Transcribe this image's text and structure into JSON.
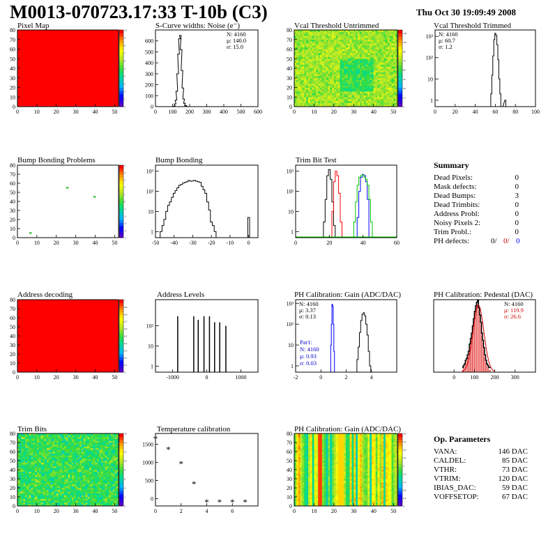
{
  "title": "M0013-070723.17:33 T-10b (C3)",
  "timestamp": "Thu Oct 30 19:09:49 2008",
  "chart_data": [
    {
      "id": "pixel-map",
      "type": "heatmap",
      "title": "Pixel Map",
      "xlim": [
        0,
        52
      ],
      "ylim": [
        0,
        80
      ],
      "xticks": [
        0,
        10,
        20,
        30,
        40,
        50
      ],
      "yticks": [
        0,
        10,
        20,
        30,
        40,
        50,
        60,
        70,
        80
      ],
      "fill": "uniform-red",
      "zlim": [
        0,
        10
      ],
      "zticks": [
        0,
        1,
        2,
        3,
        4,
        5,
        6,
        7,
        8,
        9,
        10
      ]
    },
    {
      "id": "scurve",
      "type": "line",
      "title": "S-Curve widths: Noise (e⁻)",
      "xlim": [
        0,
        600
      ],
      "ylim": [
        0,
        700
      ],
      "xticks": [
        0,
        100,
        200,
        300,
        400,
        500,
        600
      ],
      "yticks": [
        0,
        100,
        200,
        300,
        400,
        500,
        600
      ],
      "stats": [
        "N: 4160",
        "μ: 140.0",
        "σ: 15.0"
      ],
      "series": [
        {
          "color": "#000000",
          "x": [
            100,
            110,
            115,
            120,
            125,
            130,
            135,
            140,
            145,
            150,
            155,
            160,
            165,
            170,
            175,
            180,
            190
          ],
          "values": [
            0,
            5,
            25,
            60,
            140,
            300,
            480,
            620,
            650,
            520,
            330,
            170,
            70,
            30,
            10,
            3,
            0
          ]
        }
      ]
    },
    {
      "id": "vcal-untrimmed",
      "type": "heatmap",
      "title": "Vcal Threshold Untrimmed",
      "xlim": [
        0,
        52
      ],
      "ylim": [
        0,
        80
      ],
      "xticks": [
        0,
        10,
        20,
        30,
        40,
        50
      ],
      "yticks": [
        0,
        10,
        20,
        30,
        40,
        50,
        60,
        70,
        80
      ],
      "fill": "noise",
      "noise_mean": 0.6,
      "noise_spread": 0.15,
      "zlim": [
        0,
        125
      ],
      "zticks": [
        0,
        5,
        10,
        15,
        20,
        25,
        30,
        35,
        40,
        45,
        50,
        55,
        60,
        65,
        70,
        75,
        80,
        85,
        90,
        95,
        100,
        105,
        110,
        115,
        120,
        125
      ]
    },
    {
      "id": "vcal-trimmed",
      "type": "line",
      "log": true,
      "title": "Vcal Threshold Trimmed",
      "xlim": [
        0,
        100
      ],
      "ylim": [
        0.5,
        2000
      ],
      "xticks": [
        0,
        20,
        40,
        60,
        80,
        100
      ],
      "ytickvals": [
        1,
        10,
        100,
        1000
      ],
      "yticklabels": [
        "1",
        "10",
        "10²",
        "10³"
      ],
      "stats": [
        "N: 4160",
        "μ: 60.7",
        "σ:  1.2"
      ],
      "series": [
        {
          "color": "#000000",
          "x": [
            55,
            56,
            57,
            58,
            59,
            60,
            61,
            62,
            63,
            64,
            65,
            66,
            67,
            70,
            71
          ],
          "values": [
            0.5,
            2,
            15,
            120,
            700,
            1400,
            1100,
            400,
            80,
            10,
            2,
            0.5,
            0.5,
            1,
            0.5
          ]
        }
      ]
    },
    {
      "id": "bump-problems",
      "type": "heatmap",
      "title": "Bump Bonding Problems",
      "xlim": [
        0,
        52
      ],
      "ylim": [
        0,
        80
      ],
      "xticks": [
        0,
        10,
        20,
        30,
        40,
        50
      ],
      "yticks": [
        0,
        10,
        20,
        30,
        40,
        50,
        60,
        70,
        80
      ],
      "fill": "points",
      "points": [
        [
          25,
          55
        ],
        [
          39,
          45
        ],
        [
          6,
          5
        ]
      ],
      "zlim": [
        -5,
        5
      ],
      "zticks": [
        -5,
        -4,
        -3,
        -2,
        -1,
        0,
        1,
        2,
        3,
        4,
        5
      ]
    },
    {
      "id": "bump-bonding",
      "type": "line",
      "log": true,
      "title": "Bump Bonding",
      "xlim": [
        -50,
        5
      ],
      "ylim": [
        0.5,
        2000
      ],
      "xticks": [
        -50,
        -40,
        -30,
        -20,
        -10,
        0
      ],
      "ytickvals": [
        1,
        10,
        100,
        1000
      ],
      "yticklabels": [
        "1",
        "10",
        "10²",
        "10³"
      ],
      "series": [
        {
          "color": "#000000",
          "x": [
            -48,
            -47,
            -46,
            -45,
            -44,
            -43,
            -42,
            -41,
            -40,
            -39,
            -38,
            -37,
            -36,
            -35,
            -34,
            -33,
            -32,
            -31,
            -30,
            -29,
            -28,
            -27,
            -26,
            -25,
            -24,
            -23,
            -22,
            -21,
            -20,
            -19,
            -18,
            -17,
            -16,
            -15,
            -14,
            -13,
            -12,
            -11,
            -10,
            -9,
            -8,
            -7,
            -6,
            -5,
            -4,
            -3,
            -2,
            -1,
            0,
            1
          ],
          "values": [
            0.5,
            1,
            2,
            4,
            10,
            20,
            30,
            50,
            80,
            110,
            150,
            200,
            220,
            260,
            280,
            300,
            350,
            320,
            330,
            350,
            320,
            300,
            280,
            180,
            120,
            80,
            30,
            12,
            3,
            2,
            1,
            0.5,
            0.5,
            0.5,
            0.5,
            0.5,
            0.5,
            0.5,
            0.5,
            0.5,
            0.5,
            0.5,
            0.5,
            0.5,
            0.5,
            0.5,
            0.5,
            0.5,
            5,
            0.5
          ]
        }
      ]
    },
    {
      "id": "trim-bit-test",
      "type": "line",
      "log": true,
      "title": "Trim Bit Test",
      "xlim": [
        0,
        60
      ],
      "ylim": [
        0.5,
        2000
      ],
      "xticks": [
        0,
        20,
        40,
        60
      ],
      "ytickvals": [
        1,
        10,
        100,
        1000
      ],
      "yticklabels": [
        "1",
        "10",
        "10²",
        "10³"
      ],
      "series": [
        {
          "color": "#000000",
          "x": [
            16,
            17,
            18,
            19,
            20,
            21,
            22,
            23,
            24
          ],
          "values": [
            0.5,
            3,
            40,
            600,
            1200,
            400,
            30,
            2,
            0.5
          ]
        },
        {
          "color": "#ff0000",
          "x": [
            21,
            22,
            23,
            24,
            25,
            26,
            27,
            28
          ],
          "values": [
            0.5,
            10,
            300,
            1000,
            600,
            80,
            3,
            0.5
          ]
        },
        {
          "color": "#0000ff",
          "x": [
            36,
            37,
            38,
            39,
            40,
            41,
            42,
            43,
            44
          ],
          "values": [
            0.5,
            5,
            100,
            500,
            700,
            600,
            300,
            40,
            0.5
          ]
        },
        {
          "color": "#00c800",
          "x": [
            34,
            35,
            36,
            37,
            38,
            39,
            40,
            41,
            42,
            43,
            44,
            45,
            46
          ],
          "values": [
            0.5,
            3,
            30,
            200,
            500,
            600,
            650,
            500,
            400,
            200,
            40,
            3,
            0.5
          ]
        }
      ]
    },
    {
      "id": "address-decoding",
      "type": "heatmap",
      "title": "Address decoding",
      "xlim": [
        0,
        52
      ],
      "ylim": [
        0,
        80
      ],
      "xticks": [
        0,
        10,
        20,
        30,
        40,
        50
      ],
      "yticks": [
        0,
        10,
        20,
        30,
        40,
        50,
        60,
        70,
        80
      ],
      "fill": "uniform-red",
      "zlim": [
        0,
        1
      ],
      "zticks": [
        0,
        0.1,
        0.2,
        0.3,
        0.4,
        0.5,
        0.6,
        0.7,
        0.8,
        0.9,
        1
      ]
    },
    {
      "id": "address-levels",
      "type": "bar",
      "log": true,
      "title": "Address Levels",
      "xlim": [
        -1500,
        1500
      ],
      "ylim": [
        0.5,
        2000
      ],
      "xticks": [
        -1000,
        0,
        1000
      ],
      "ytickvals": [
        1,
        10,
        100
      ],
      "yticklabels": [
        "1",
        "10",
        "10²"
      ],
      "spikes": [
        {
          "x": -850,
          "v": 300
        },
        {
          "x": -380,
          "v": 300
        },
        {
          "x": -250,
          "v": 200
        },
        {
          "x": -80,
          "v": 300
        },
        {
          "x": 80,
          "v": 300
        },
        {
          "x": 230,
          "v": 150
        },
        {
          "x": 380,
          "v": 150
        },
        {
          "x": 560,
          "v": 100
        }
      ]
    },
    {
      "id": "ph-gain",
      "type": "line",
      "log": true,
      "title": "PH Calibration: Gain (ADC/DAC)",
      "xlim": [
        -2,
        6
      ],
      "ylim": [
        0.5,
        1500
      ],
      "xticks": [
        -2,
        0,
        2,
        4
      ],
      "ytickvals": [
        1,
        10,
        100,
        1000
      ],
      "yticklabels": [
        "1",
        "10",
        "10²",
        "10³"
      ],
      "stats": [
        "N: 4160",
        "μ: 3.37",
        "σ: 0.13"
      ],
      "stats2": [
        "Par1:",
        "N: 4160",
        "μ: 0.93",
        "σ: 0.03"
      ],
      "series": [
        {
          "color": "#000000",
          "x": [
            2.8,
            2.9,
            3.0,
            3.1,
            3.2,
            3.3,
            3.4,
            3.5,
            3.6,
            3.7,
            3.8,
            3.9,
            4.0
          ],
          "values": [
            0.5,
            2,
            8,
            40,
            150,
            300,
            350,
            250,
            100,
            30,
            5,
            1,
            0.5
          ]
        },
        {
          "color": "#0000ff",
          "x": [
            0.75,
            0.8,
            0.85,
            0.9,
            0.95,
            1.0,
            1.05,
            1.1,
            1.15
          ],
          "values": [
            0.5,
            10,
            100,
            900,
            700,
            100,
            5,
            0.5,
            0.5
          ]
        }
      ]
    },
    {
      "id": "ph-pedestal",
      "type": "bar",
      "title": "PH Calibration: Pedestal (DAC)",
      "xlim": [
        -100,
        400
      ],
      "ylim": [
        0,
        40
      ],
      "xticks": [
        0,
        100,
        200,
        300
      ],
      "stats": [
        "N: 4160",
        "μ: 119.9",
        "σ: 26.6"
      ],
      "stats_colors": [
        "#000000",
        "#d00000",
        "#d00000"
      ],
      "hist": {
        "x0": 40,
        "dx": 5,
        "values": [
          1,
          2,
          3,
          5,
          6,
          8,
          10,
          14,
          17,
          20,
          24,
          28,
          32,
          35,
          37,
          38,
          34,
          30,
          26,
          20,
          16,
          12,
          8,
          5,
          3,
          2,
          1,
          1
        ]
      }
    },
    {
      "id": "trim-bits",
      "type": "heatmap",
      "title": "Trim Bits",
      "xlim": [
        0,
        52
      ],
      "ylim": [
        0,
        80
      ],
      "xticks": [
        0,
        10,
        20,
        30,
        40,
        50
      ],
      "yticks": [
        0,
        10,
        20,
        30,
        40,
        50,
        60,
        70,
        80
      ],
      "fill": "noise",
      "noise_mean": 0.48,
      "noise_spread": 0.2,
      "zlim": [
        0,
        16
      ],
      "zticks": [
        0,
        2,
        4,
        6,
        8,
        10,
        12,
        14,
        16
      ]
    },
    {
      "id": "temp-calibration",
      "type": "scatter",
      "title": "Temperature calibration",
      "xlim": [
        0,
        8
      ],
      "ylim": [
        -200,
        1800
      ],
      "xticks": [
        0,
        2,
        4,
        6
      ],
      "yticks": [
        0,
        500,
        1000,
        1500
      ],
      "x": [
        0,
        1,
        2,
        3,
        4,
        5,
        6,
        7
      ],
      "values": [
        1650,
        1350,
        950,
        400,
        -100,
        -100,
        -100,
        -100
      ]
    },
    {
      "id": "ph-gain-map",
      "type": "heatmap",
      "title": "PH Calibration: Gain (ADC/DAC)",
      "xlim": [
        0,
        52
      ],
      "ylim": [
        0,
        80
      ],
      "xticks": [
        0,
        10,
        20,
        30,
        40,
        50
      ],
      "yticks": [
        0,
        10,
        20,
        30,
        40,
        50,
        60,
        70,
        80
      ],
      "fill": "columns",
      "zlim": [
        0,
        3.6
      ],
      "zticks": [
        0,
        0.2,
        0.4,
        0.6,
        0.8,
        1,
        1.2,
        1.4,
        1.6,
        1.8,
        2,
        2.2,
        2.4,
        2.6,
        2.8,
        3,
        3.2,
        3.4,
        3.6
      ]
    }
  ],
  "summary": {
    "heading": "Summary",
    "rows": [
      {
        "label": "Dead Pixels:",
        "value": "0"
      },
      {
        "label": "Mask defects:",
        "value": "0"
      },
      {
        "label": "Dead Bumps:",
        "value": "3"
      },
      {
        "label": "Dead Trimbits:",
        "value": "0"
      },
      {
        "label": "Address Probl:",
        "value": "0"
      },
      {
        "label": "Noisy Pixels 2:",
        "value": "0"
      },
      {
        "label": "Trim Probl.:",
        "value": "0"
      }
    ],
    "ph_label": "PH defects:",
    "ph_values": [
      {
        "v": "0/",
        "color": "#000000"
      },
      {
        "v": "0/",
        "color": "#d00000"
      },
      {
        "v": "0",
        "color": "#0000ff"
      }
    ]
  },
  "op_params": {
    "heading": "Op. Parameters",
    "rows": [
      {
        "label": "VANA:",
        "value": "146 DAC"
      },
      {
        "label": "CALDEL:",
        "value": "85 DAC"
      },
      {
        "label": "VTHR:",
        "value": "73 DAC"
      },
      {
        "label": "VTRIM:",
        "value": "120 DAC"
      },
      {
        "label": "IBIAS_DAC:",
        "value": "59 DAC"
      },
      {
        "label": "VOFFSETOP:",
        "value": "67 DAC"
      }
    ]
  }
}
